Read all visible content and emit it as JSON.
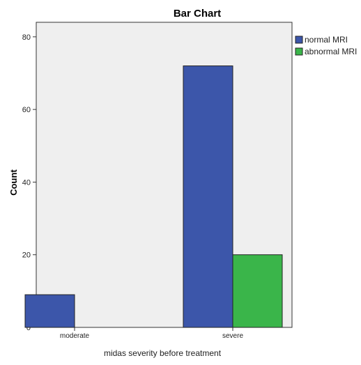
{
  "chart_data": {
    "type": "bar",
    "title": "Bar Chart",
    "xlabel": "midas severity before treatment",
    "ylabel": "Count",
    "categories": [
      "moderate",
      "severe"
    ],
    "series": [
      {
        "name": "normal MRI",
        "values": [
          9,
          72
        ]
      },
      {
        "name": "abnormal MRI",
        "values": [
          0,
          20
        ]
      }
    ],
    "ylim": [
      0,
      84
    ],
    "yticks": [
      0,
      20,
      40,
      60,
      80
    ],
    "grid": false,
    "legend_position": "right"
  },
  "colors": {
    "series": [
      "#3c56aa",
      "#3ab54a"
    ],
    "plot_background": "#efefef",
    "axis": "#333333"
  }
}
